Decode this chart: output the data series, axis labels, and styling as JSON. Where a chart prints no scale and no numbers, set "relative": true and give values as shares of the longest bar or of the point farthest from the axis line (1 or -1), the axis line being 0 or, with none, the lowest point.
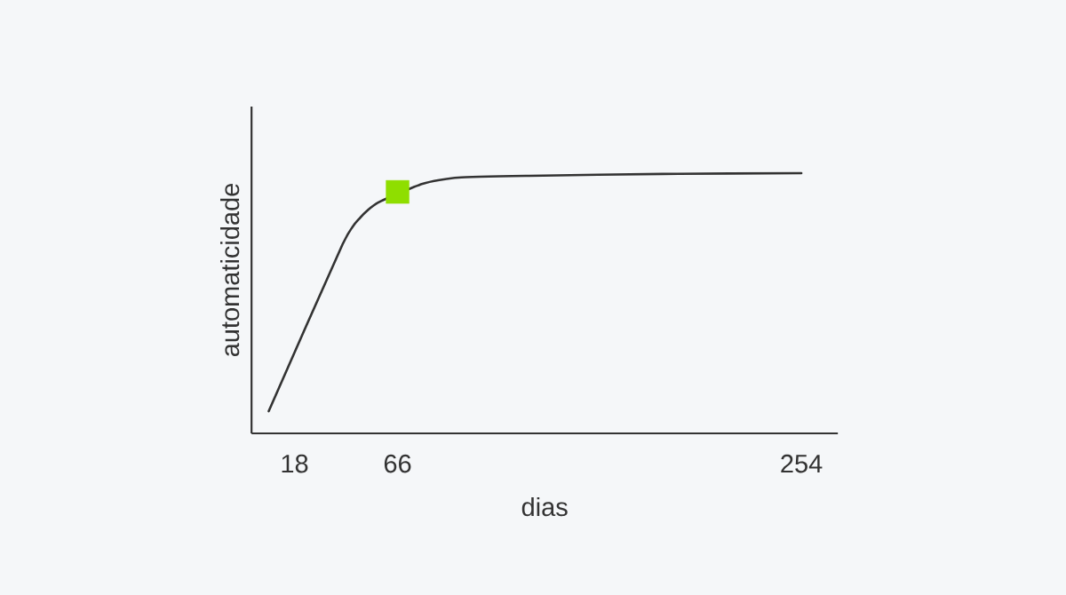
{
  "chart_data": {
    "type": "line",
    "relative": true,
    "xlabel": "dias",
    "ylabel": "automaticidade",
    "xlim": [
      -2,
      271
    ],
    "xticks": [
      18,
      66,
      254
    ],
    "marker": "none",
    "grid": false,
    "series": [
      {
        "color": "#333333",
        "line_style": "solid",
        "x": [
          6,
          40.4,
          48.6,
          56.9,
          66,
          77.6,
          94.2,
          127.3,
          189.4,
          254
        ],
        "values": [
          0.085,
          0.727,
          0.829,
          0.887,
          null,
          0.959,
          0.983,
          0.99,
          0.997,
          1
        ]
      },
      {
        "type": "scatter",
        "color": "#8fde00",
        "marker": "square",
        "x": [
          66
        ],
        "values": [
          0.928
        ]
      }
    ]
  }
}
